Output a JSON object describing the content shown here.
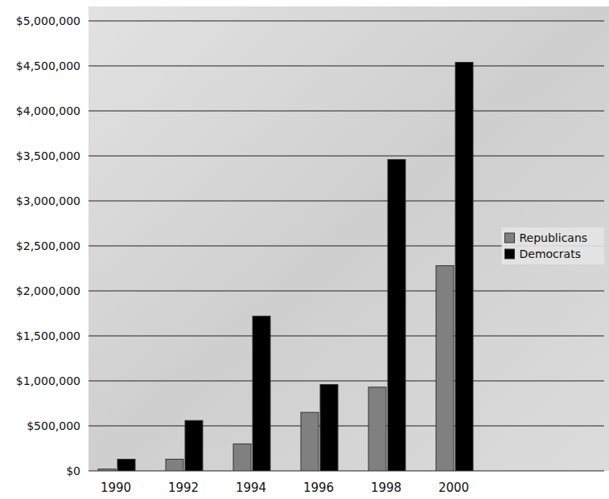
{
  "chart_data": {
    "type": "bar",
    "categories": [
      "1990",
      "1992",
      "1994",
      "1996",
      "1998",
      "2000"
    ],
    "series": [
      {
        "name": "Republicans",
        "color": "#808080",
        "values": [
          20000,
          130000,
          300000,
          650000,
          930000,
          2280000
        ]
      },
      {
        "name": "Democrats",
        "color": "#000000",
        "values": [
          130000,
          560000,
          1720000,
          960000,
          3460000,
          4540000
        ]
      }
    ],
    "ylim": [
      0,
      5000000
    ],
    "yticks": [
      {
        "value": 0,
        "label": "$0"
      },
      {
        "value": 500000,
        "label": "$500,000"
      },
      {
        "value": 1000000,
        "label": "$1,000,000"
      },
      {
        "value": 1500000,
        "label": "$1,500,000"
      },
      {
        "value": 2000000,
        "label": "$2,000,000"
      },
      {
        "value": 2500000,
        "label": "$2,500,000"
      },
      {
        "value": 3000000,
        "label": "$3,000,000"
      },
      {
        "value": 3500000,
        "label": "$3,500,000"
      },
      {
        "value": 4000000,
        "label": "$4,000,000"
      },
      {
        "value": 4500000,
        "label": "$4,500,000"
      },
      {
        "value": 5000000,
        "label": "$5,000,000"
      }
    ],
    "grid": true,
    "legend": "right"
  }
}
